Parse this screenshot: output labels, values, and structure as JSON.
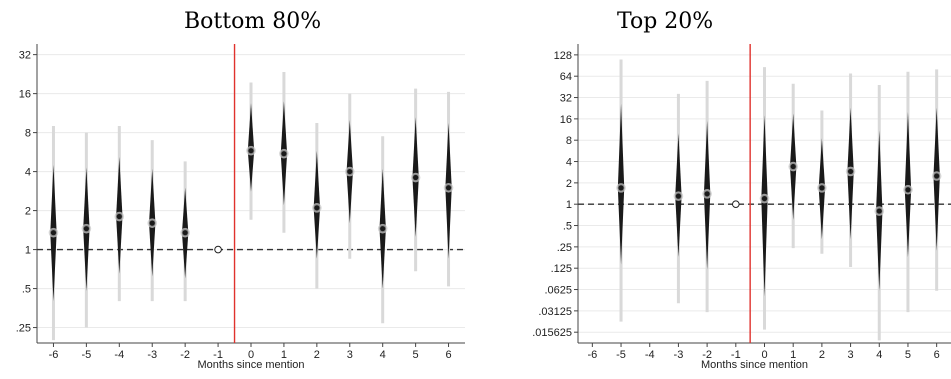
{
  "chart_data": [
    {
      "type": "scatter",
      "title": "Bottom 80%",
      "xlabel": "Months since mention",
      "ylabel": "",
      "yscale": "log2",
      "x_ticks": [
        -6,
        -5,
        -4,
        -3,
        -2,
        -1,
        0,
        1,
        2,
        3,
        4,
        5,
        6
      ],
      "x_tick_labels": [
        "-6",
        "-5",
        "-4",
        "-3",
        "-2",
        "-1",
        "0",
        "1",
        "2",
        "3",
        "4",
        "5",
        "6"
      ],
      "y_ticks": [
        0.25,
        0.5,
        1,
        2,
        4,
        8,
        16,
        32
      ],
      "y_tick_labels": [
        ".25",
        ".5",
        "1",
        "2",
        "4",
        "8",
        "16",
        "32"
      ],
      "ylim": [
        0.19,
        36
      ],
      "xlim": [
        -6.5,
        6.5
      ],
      "reference_line_y": 1,
      "event_line_x": -0.5,
      "grid": true,
      "series": [
        {
          "x": [
            -6,
            -5,
            -4,
            -3,
            -2,
            0,
            1,
            2,
            3,
            4,
            5,
            6
          ],
          "estimate": [
            1.35,
            1.45,
            1.8,
            1.6,
            1.35,
            5.8,
            5.5,
            2.1,
            4.0,
            1.45,
            3.6,
            3.0
          ],
          "ci_inner": [
            [
              0.4,
              4.5
            ],
            [
              0.48,
              4.3
            ],
            [
              0.65,
              5.2
            ],
            [
              0.62,
              4.2
            ],
            [
              0.6,
              3.0
            ],
            [
              2.8,
              13.5
            ],
            [
              2.2,
              14.0
            ],
            [
              0.85,
              5.8
            ],
            [
              1.6,
              10.0
            ],
            [
              0.5,
              4.2
            ],
            [
              1.25,
              10.5
            ],
            [
              0.85,
              9.5
            ]
          ],
          "ci_outer": [
            [
              0.2,
              9.0
            ],
            [
              0.25,
              8.0
            ],
            [
              0.4,
              9.0
            ],
            [
              0.4,
              7.0
            ],
            [
              0.4,
              4.8
            ],
            [
              1.7,
              19.5
            ],
            [
              1.35,
              23.5
            ],
            [
              0.5,
              9.5
            ],
            [
              0.85,
              16.0
            ],
            [
              0.27,
              7.5
            ],
            [
              0.68,
              17.5
            ],
            [
              0.52,
              16.5
            ]
          ]
        },
        {
          "x": [
            -1
          ],
          "estimate": [
            1
          ],
          "marker": "hollow"
        }
      ]
    },
    {
      "type": "scatter",
      "title": "Top 20%",
      "xlabel": "Months since mention",
      "ylabel": "",
      "yscale": "log2",
      "x_ticks": [
        -6,
        -5,
        -4,
        -3,
        -2,
        -1,
        0,
        1,
        2,
        3,
        4,
        5,
        6
      ],
      "x_tick_labels": [
        "-6",
        "-5",
        "-4",
        "-3",
        "-2",
        "-1",
        "0",
        "1",
        "2",
        "3",
        "4",
        "5",
        "6"
      ],
      "y_ticks": [
        0.015625,
        0.03125,
        0.0625,
        0.125,
        0.25,
        0.5,
        1,
        2,
        4,
        8,
        16,
        32,
        64,
        128
      ],
      "y_tick_labels": [
        ".015625",
        ".03125",
        ".0625",
        ".125",
        ".25",
        ".5",
        "1",
        "2",
        "4",
        "8",
        "16",
        "32",
        "64",
        "128"
      ],
      "ylim": [
        0.011,
        160
      ],
      "xlim": [
        -6.5,
        6.5
      ],
      "reference_line_y": 1,
      "event_line_x": -0.5,
      "grid": true,
      "series": [
        {
          "x": [
            -5,
            -3,
            -2,
            0,
            1,
            2,
            3,
            4,
            5,
            6
          ],
          "estimate": [
            1.7,
            1.3,
            1.4,
            1.2,
            3.4,
            1.7,
            2.9,
            0.8,
            1.6,
            2.5
          ],
          "ci_inner": [
            [
              0.14,
              26
            ],
            [
              0.18,
              10
            ],
            [
              0.12,
              15
            ],
            [
              0.05,
              18
            ],
            [
              0.6,
              19
            ],
            [
              0.32,
              8.5
            ],
            [
              0.32,
              23
            ],
            [
              0.06,
              11
            ],
            [
              0.18,
              20
            ],
            [
              0.22,
              23
            ]
          ],
          "ci_outer": [
            [
              0.022,
              110
            ],
            [
              0.04,
              36
            ],
            [
              0.03,
              55
            ],
            [
              0.017,
              86
            ],
            [
              0.24,
              50
            ],
            [
              0.2,
              21
            ],
            [
              0.13,
              70
            ],
            [
              0.012,
              48
            ],
            [
              0.03,
              74
            ],
            [
              0.06,
              80
            ]
          ]
        },
        {
          "x": [
            -1
          ],
          "estimate": [
            1
          ],
          "marker": "hollow"
        }
      ]
    }
  ]
}
